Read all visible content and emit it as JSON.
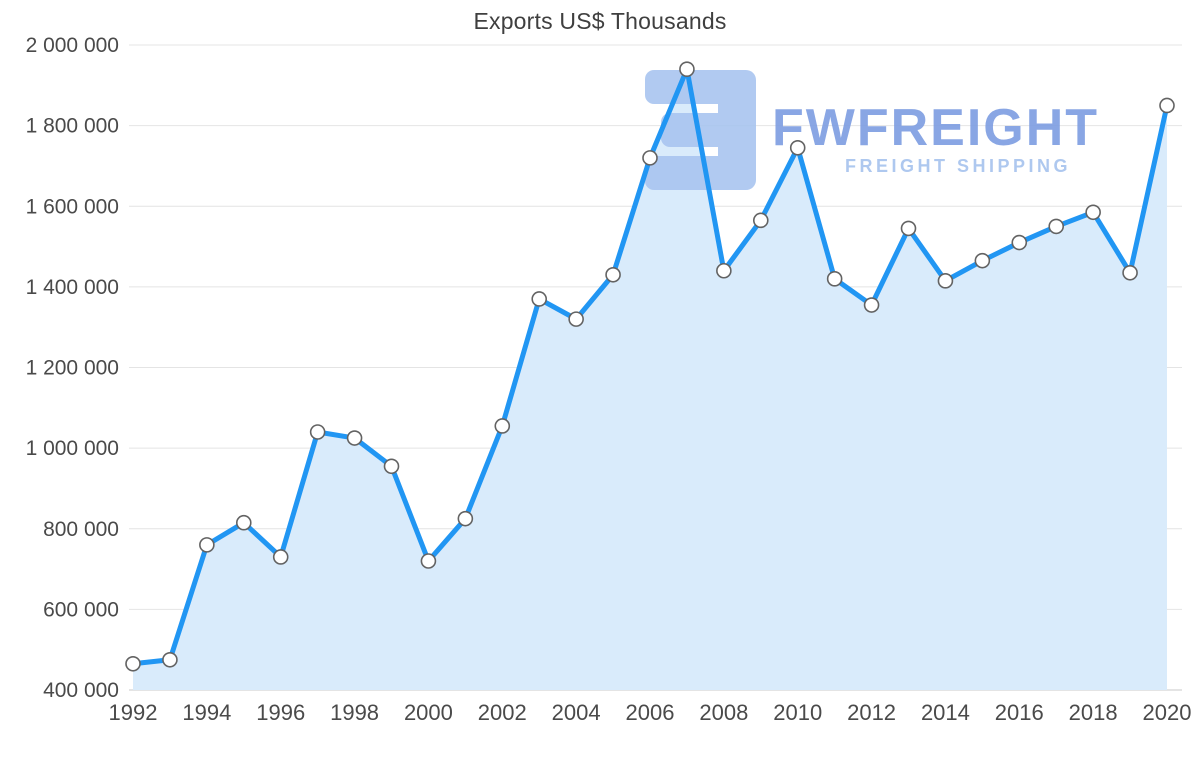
{
  "chart_data": {
    "type": "area",
    "title": "Exports US$ Thousands",
    "x": [
      1992,
      1993,
      1994,
      1995,
      1996,
      1997,
      1998,
      1999,
      2000,
      2001,
      2002,
      2003,
      2004,
      2005,
      2006,
      2007,
      2008,
      2009,
      2010,
      2011,
      2012,
      2013,
      2014,
      2015,
      2016,
      2017,
      2018,
      2019,
      2020
    ],
    "values": [
      465000,
      475000,
      760000,
      815000,
      730000,
      1040000,
      1025000,
      955000,
      720000,
      825000,
      1055000,
      1370000,
      1320000,
      1430000,
      1720000,
      1940000,
      1440000,
      1565000,
      1745000,
      1420000,
      1355000,
      1545000,
      1415000,
      1465000,
      1510000,
      1550000,
      1585000,
      1435000,
      1850000
    ],
    "xlabel": "",
    "ylabel": "",
    "ylim": [
      400000,
      2000000
    ],
    "y_ticks": [
      400000,
      600000,
      800000,
      1000000,
      1200000,
      1400000,
      1600000,
      1800000,
      2000000
    ],
    "x_ticks": [
      1992,
      1994,
      1996,
      1998,
      2000,
      2002,
      2004,
      2006,
      2008,
      2010,
      2012,
      2014,
      2016,
      2018,
      2020
    ],
    "grid": "horizontal",
    "legend": "none",
    "colors": {
      "line": "#2196f3",
      "area": "#d9ebfb",
      "marker_fill": "#ffffff",
      "marker_stroke": "#636363",
      "grid": "#e4e4e4",
      "baseline": "#c9c9c9",
      "tick_label": "#4a4a4a"
    }
  },
  "watermark": {
    "brand": "FWFREIGHT",
    "tagline": "FREIGHT SHIPPING",
    "colors": {
      "logo": "#a9c5f0",
      "brand": "#7d9de2",
      "tagline": "#a6c3ee"
    }
  }
}
